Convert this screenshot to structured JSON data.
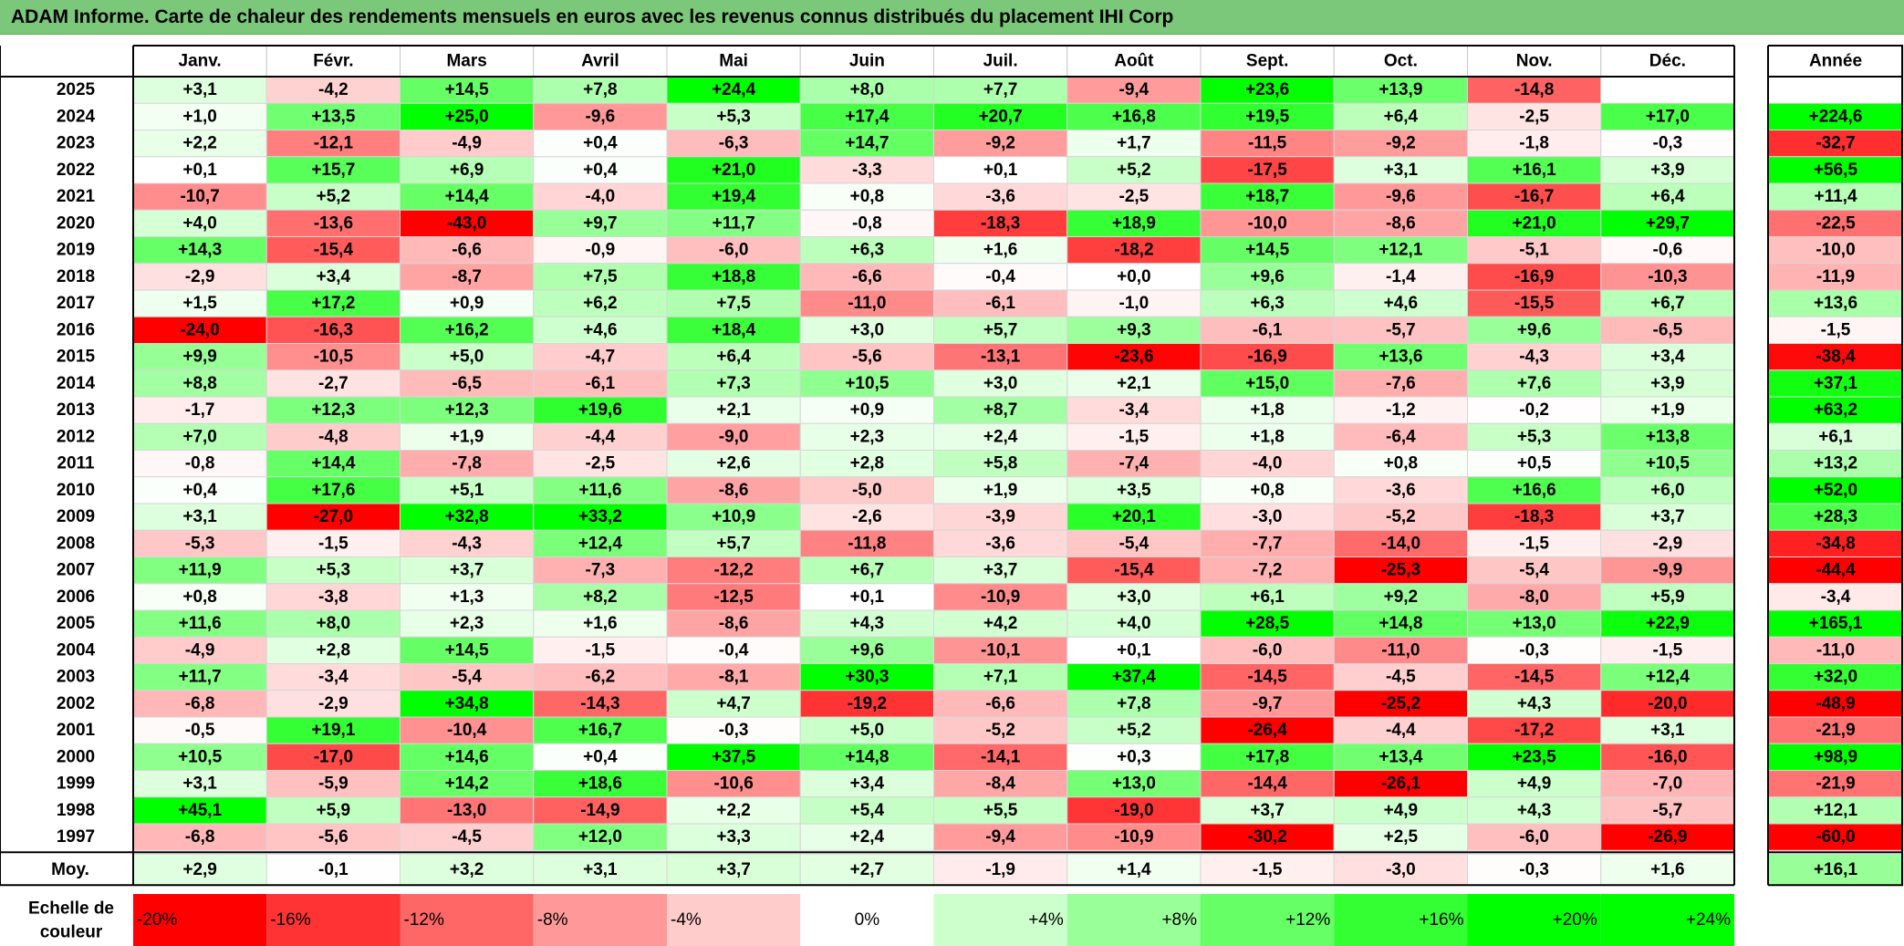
{
  "title": "ADAM Informe. Carte de chaleur des rendements mensuels en euros avec les revenus connus distribués du placement IHI Corp",
  "chart_data": {
    "type": "heatmap",
    "title": "ADAM Informe. Carte de chaleur des rendements mensuels en euros avec les revenus connus distribués du placement IHI Corp",
    "months": [
      "Janv.",
      "Févr.",
      "Mars",
      "Avril",
      "Mai",
      "Juin",
      "Juil.",
      "Août",
      "Sept.",
      "Oct.",
      "Nov.",
      "Déc."
    ],
    "annual_header": "Année",
    "years": [
      "2025",
      "2024",
      "2023",
      "2022",
      "2021",
      "2020",
      "2019",
      "2018",
      "2017",
      "2016",
      "2015",
      "2014",
      "2013",
      "2012",
      "2011",
      "2010",
      "2009",
      "2008",
      "2007",
      "2006",
      "2005",
      "2004",
      "2003",
      "2002",
      "2001",
      "2000",
      "1999",
      "1998",
      "1997"
    ],
    "values": [
      [
        "+3,1",
        "-4,2",
        "+14,5",
        "+7,8",
        "+24,4",
        "+8,0",
        "+7,7",
        "-9,4",
        "+23,6",
        "+13,9",
        "-14,8",
        ""
      ],
      [
        "+1,0",
        "+13,5",
        "+25,0",
        "-9,6",
        "+5,3",
        "+17,4",
        "+20,7",
        "+16,8",
        "+19,5",
        "+6,4",
        "-2,5",
        "+17,0"
      ],
      [
        "+2,2",
        "-12,1",
        "-4,9",
        "+0,4",
        "-6,3",
        "+14,7",
        "-9,2",
        "+1,7",
        "-11,5",
        "-9,2",
        "-1,8",
        "-0,3"
      ],
      [
        "+0,1",
        "+15,7",
        "+6,9",
        "+0,4",
        "+21,0",
        "-3,3",
        "+0,1",
        "+5,2",
        "-17,5",
        "+3,1",
        "+16,1",
        "+3,9"
      ],
      [
        "-10,7",
        "+5,2",
        "+14,4",
        "-4,0",
        "+19,4",
        "+0,8",
        "-3,6",
        "-2,5",
        "+18,7",
        "-9,6",
        "-16,7",
        "+6,4"
      ],
      [
        "+4,0",
        "-13,6",
        "-43,0",
        "+9,7",
        "+11,7",
        "-0,8",
        "-18,3",
        "+18,9",
        "-10,0",
        "-8,6",
        "+21,0",
        "+29,7"
      ],
      [
        "+14,3",
        "-15,4",
        "-6,6",
        "-0,9",
        "-6,0",
        "+6,3",
        "+1,6",
        "-18,2",
        "+14,5",
        "+12,1",
        "-5,1",
        "-0,6"
      ],
      [
        "-2,9",
        "+3,4",
        "-8,7",
        "+7,5",
        "+18,8",
        "-6,6",
        "-0,4",
        "+0,0",
        "+9,6",
        "-1,4",
        "-16,9",
        "-10,3"
      ],
      [
        "+1,5",
        "+17,2",
        "+0,9",
        "+6,2",
        "+7,5",
        "-11,0",
        "-6,1",
        "-1,0",
        "+6,3",
        "+4,6",
        "-15,5",
        "+6,7"
      ],
      [
        "-24,0",
        "-16,3",
        "+16,2",
        "+4,6",
        "+18,4",
        "+3,0",
        "+5,7",
        "+9,3",
        "-6,1",
        "-5,7",
        "+9,6",
        "-6,5"
      ],
      [
        "+9,9",
        "-10,5",
        "+5,0",
        "-4,7",
        "+6,4",
        "-5,6",
        "-13,1",
        "-23,6",
        "-16,9",
        "+13,6",
        "-4,3",
        "+3,4"
      ],
      [
        "+8,8",
        "-2,7",
        "-6,5",
        "-6,1",
        "+7,3",
        "+10,5",
        "+3,0",
        "+2,1",
        "+15,0",
        "-7,6",
        "+7,6",
        "+3,9"
      ],
      [
        "-1,7",
        "+12,3",
        "+12,3",
        "+19,6",
        "+2,1",
        "+0,9",
        "+8,7",
        "-3,4",
        "+1,8",
        "-1,2",
        "-0,2",
        "+1,9"
      ],
      [
        "+7,0",
        "-4,8",
        "+1,9",
        "-4,4",
        "-9,0",
        "+2,3",
        "+2,4",
        "-1,5",
        "+1,8",
        "-6,4",
        "+5,3",
        "+13,8"
      ],
      [
        "-0,8",
        "+14,4",
        "-7,8",
        "-2,5",
        "+2,6",
        "+2,8",
        "+5,8",
        "-7,4",
        "-4,0",
        "+0,8",
        "+0,5",
        "+10,5"
      ],
      [
        "+0,4",
        "+17,6",
        "+5,1",
        "+11,6",
        "-8,6",
        "-5,0",
        "+1,9",
        "+3,5",
        "+0,8",
        "-3,6",
        "+16,6",
        "+6,0"
      ],
      [
        "+3,1",
        "-27,0",
        "+32,8",
        "+33,2",
        "+10,9",
        "-2,6",
        "-3,9",
        "+20,1",
        "-3,0",
        "-5,2",
        "-18,3",
        "+3,7"
      ],
      [
        "-5,3",
        "-1,5",
        "-4,3",
        "+12,4",
        "+5,7",
        "-11,8",
        "-3,6",
        "-5,4",
        "-7,7",
        "-14,0",
        "-1,5",
        "-2,9"
      ],
      [
        "+11,9",
        "+5,3",
        "+3,7",
        "-7,3",
        "-12,2",
        "+6,7",
        "+3,7",
        "-15,4",
        "-7,2",
        "-25,3",
        "-5,4",
        "-9,9"
      ],
      [
        "+0,8",
        "-3,8",
        "+1,3",
        "+8,2",
        "-12,5",
        "+0,1",
        "-10,9",
        "+3,0",
        "+6,1",
        "+9,2",
        "-8,0",
        "+5,9"
      ],
      [
        "+11,6",
        "+8,0",
        "+2,3",
        "+1,6",
        "-8,6",
        "+4,3",
        "+4,2",
        "+4,0",
        "+28,5",
        "+14,8",
        "+13,0",
        "+22,9"
      ],
      [
        "-4,9",
        "+2,8",
        "+14,5",
        "-1,5",
        "-0,4",
        "+9,6",
        "-10,1",
        "+0,1",
        "-6,0",
        "-11,0",
        "-0,3",
        "-1,5"
      ],
      [
        "+11,7",
        "-3,4",
        "-5,4",
        "-6,2",
        "-8,1",
        "+30,3",
        "+7,1",
        "+37,4",
        "-14,5",
        "-4,5",
        "-14,5",
        "+12,4"
      ],
      [
        "-6,8",
        "-2,9",
        "+34,8",
        "-14,3",
        "+4,7",
        "-19,2",
        "-6,6",
        "+7,8",
        "-9,7",
        "-25,2",
        "+4,3",
        "-20,0"
      ],
      [
        "-0,5",
        "+19,1",
        "-10,4",
        "+16,7",
        "-0,3",
        "+5,0",
        "-5,2",
        "+5,2",
        "-26,4",
        "-4,4",
        "-17,2",
        "+3,1"
      ],
      [
        "+10,5",
        "-17,0",
        "+14,6",
        "+0,4",
        "+37,5",
        "+14,8",
        "-14,1",
        "+0,3",
        "+17,8",
        "+13,4",
        "+23,5",
        "-16,0"
      ],
      [
        "+3,1",
        "-5,9",
        "+14,2",
        "+18,6",
        "-10,6",
        "+3,4",
        "-8,4",
        "+13,0",
        "-14,4",
        "-26,1",
        "+4,9",
        "-7,0"
      ],
      [
        "+45,1",
        "+5,9",
        "-13,0",
        "-14,9",
        "+2,2",
        "+5,4",
        "+5,5",
        "-19,0",
        "+3,7",
        "+4,9",
        "+4,3",
        "-5,7"
      ],
      [
        "-6,8",
        "-5,6",
        "-4,5",
        "+12,0",
        "+3,3",
        "+2,4",
        "-9,4",
        "-10,9",
        "-30,2",
        "+2,5",
        "-6,0",
        "-26,9"
      ]
    ],
    "annual": [
      "",
      "+224,6",
      "-32,7",
      "+56,5",
      "+11,4",
      "-22,5",
      "-10,0",
      "-11,9",
      "+13,6",
      "-1,5",
      "-38,4",
      "+37,1",
      "+63,2",
      "+6,1",
      "+13,2",
      "+52,0",
      "+28,3",
      "-34,8",
      "-44,4",
      "-3,4",
      "+165,1",
      "-11,0",
      "+32,0",
      "-48,9",
      "-21,9",
      "+98,9",
      "-21,9",
      "+12,1",
      "-60,0"
    ],
    "average_label": "Moy.",
    "averages": [
      "+2,9",
      "-0,1",
      "+3,2",
      "+3,1",
      "+3,7",
      "+2,7",
      "-1,9",
      "+1,4",
      "-1,5",
      "-3,0",
      "-0,3",
      "+1,6"
    ],
    "average_annual": "+16,1",
    "scale_label_line1": "Echelle de",
    "scale_label_line2": "couleur",
    "scale": [
      "-20%",
      "-16%",
      "-12%",
      "-8%",
      "-4%",
      "0%",
      "+4%",
      "+8%",
      "+12%",
      "+16%",
      "+20%",
      "+24%"
    ],
    "scale_values": [
      -20,
      -16,
      -12,
      -8,
      -4,
      0,
      4,
      8,
      12,
      16,
      20,
      24
    ],
    "colors": {
      "negative_max": "#ff0000",
      "neutral": "#ffffff",
      "positive_max": "#00ff00",
      "title_bar": "#7bc87b"
    }
  }
}
